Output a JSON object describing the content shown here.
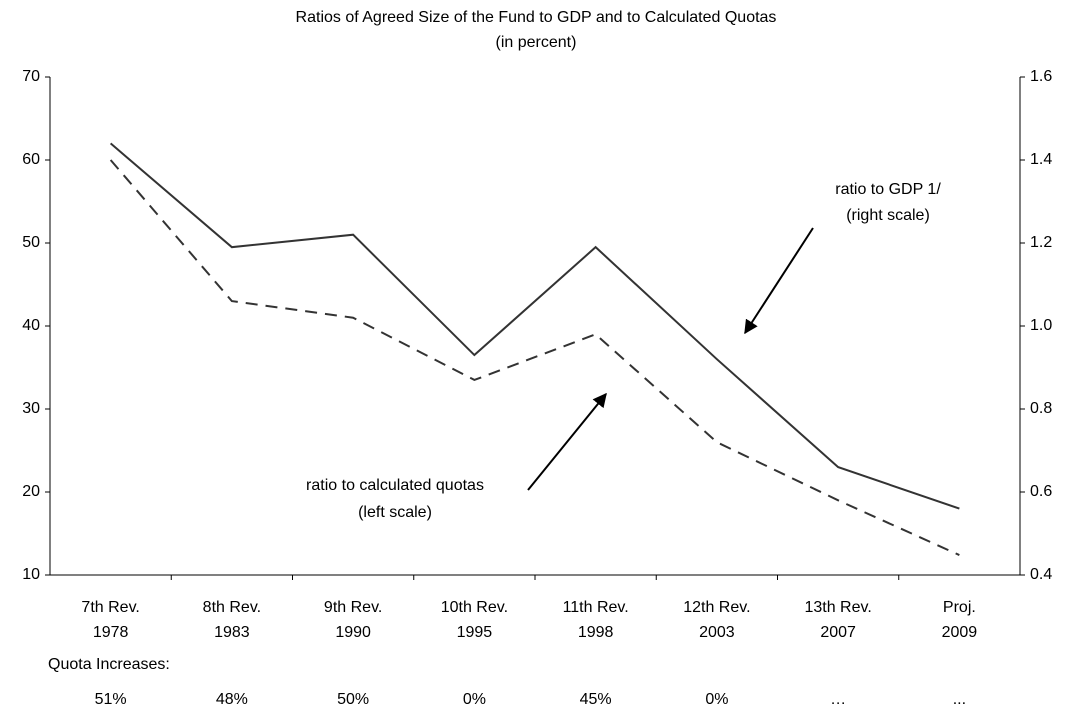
{
  "chart_data": {
    "type": "line",
    "title": "Ratios of Agreed Size of the Fund to GDP and to Calculated Quotas",
    "subtitle": "(in percent)",
    "categories": [
      [
        "7th Rev.",
        "1978"
      ],
      [
        "8th Rev.",
        "1983"
      ],
      [
        "9th Rev.",
        "1990"
      ],
      [
        "10th Rev.",
        "1995"
      ],
      [
        "11th Rev.",
        "1998"
      ],
      [
        "12th Rev.",
        "2003"
      ],
      [
        "13th Rev.",
        "2007"
      ],
      [
        "Proj.",
        "2009"
      ]
    ],
    "series": [
      {
        "name": "ratio to GDP 1/",
        "scale_note": "(right scale)",
        "color": "#333333",
        "dash": false,
        "axis": "y2",
        "values": [
          1.44,
          1.19,
          1.22,
          0.93,
          1.19,
          0.92,
          0.66,
          0.56
        ]
      },
      {
        "name": "ratio to calculated quotas",
        "scale_note": "(left scale)",
        "color": "#333333",
        "dash": true,
        "axis": "y",
        "values": [
          60,
          43,
          41,
          33.5,
          39,
          26,
          19,
          12.4
        ]
      }
    ],
    "ylim": [
      10,
      70
    ],
    "yticks": [
      10,
      20,
      30,
      40,
      50,
      60,
      70
    ],
    "y2lim": [
      0.4,
      1.6
    ],
    "y2ticks": [
      0.4,
      0.6,
      0.8,
      {
        "value": 1,
        "label": "1.0"
      },
      1.2,
      1.4,
      1.6
    ],
    "quota_title": "Quota Increases:",
    "quota_labels": [
      "51%",
      "48%",
      "50%",
      "0%",
      "45%",
      "0%",
      "…",
      "..."
    ]
  }
}
